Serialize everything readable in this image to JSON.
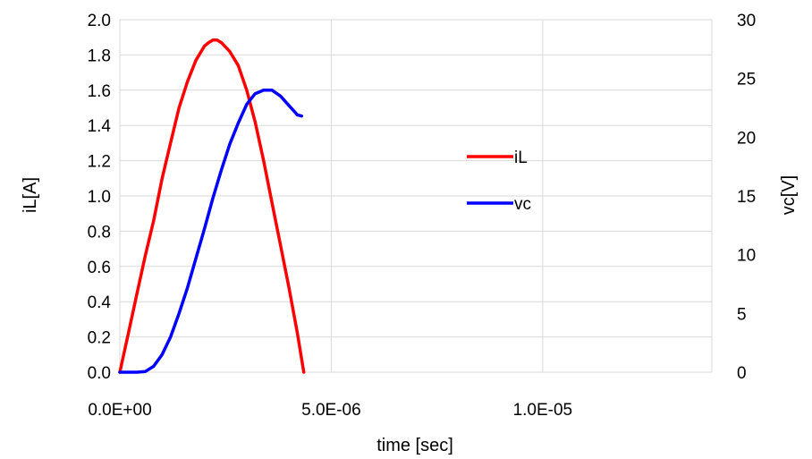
{
  "chart_data": {
    "type": "line",
    "title": "",
    "xlabel": "time [sec]",
    "ylabel": "iL[A]",
    "y2label": "vc[V]",
    "xlim": [
      0,
      1.4e-05
    ],
    "ylim": [
      0,
      2.0
    ],
    "y2lim": [
      0,
      30
    ],
    "grid": true,
    "legend_position": "center",
    "x_ticks": [
      {
        "value": 0,
        "label": "0.0E+00"
      },
      {
        "value": 5e-06,
        "label": "5.0E-06"
      },
      {
        "value": 1e-05,
        "label": "1.0E-05"
      }
    ],
    "y_ticks": [
      {
        "value": 0.0,
        "label": "0.0"
      },
      {
        "value": 0.2,
        "label": "0.2"
      },
      {
        "value": 0.4,
        "label": "0.4"
      },
      {
        "value": 0.6,
        "label": "0.6"
      },
      {
        "value": 0.8,
        "label": "0.8"
      },
      {
        "value": 1.0,
        "label": "1.0"
      },
      {
        "value": 1.2,
        "label": "1.2"
      },
      {
        "value": 1.4,
        "label": "1.4"
      },
      {
        "value": 1.6,
        "label": "1.6"
      },
      {
        "value": 1.8,
        "label": "1.8"
      },
      {
        "value": 2.0,
        "label": "2.0"
      }
    ],
    "y2_ticks": [
      {
        "value": 0,
        "label": "0"
      },
      {
        "value": 5,
        "label": "5"
      },
      {
        "value": 10,
        "label": "10"
      },
      {
        "value": 15,
        "label": "15"
      },
      {
        "value": 20,
        "label": "20"
      },
      {
        "value": 25,
        "label": "25"
      },
      {
        "value": 30,
        "label": "30"
      }
    ],
    "series": [
      {
        "name": "iL",
        "axis": "left",
        "color": "#ff0000",
        "x": [
          0,
          2e-07,
          4e-07,
          6e-07,
          8e-07,
          1e-06,
          1.2e-06,
          1.4e-06,
          1.6e-06,
          1.8e-06,
          2e-06,
          2.1e-06,
          2.2e-06,
          2.3e-06,
          2.4e-06,
          2.6e-06,
          2.8e-06,
          3e-06,
          3.2e-06,
          3.4e-06,
          3.6e-06,
          3.8e-06,
          4e-06,
          4.2e-06,
          4.35e-06
        ],
        "y": [
          0.0,
          0.22,
          0.44,
          0.66,
          0.86,
          1.1,
          1.3,
          1.5,
          1.65,
          1.77,
          1.85,
          1.87,
          1.885,
          1.885,
          1.87,
          1.82,
          1.74,
          1.6,
          1.42,
          1.2,
          0.96,
          0.72,
          0.48,
          0.22,
          0.0
        ]
      },
      {
        "name": "vc",
        "axis": "right",
        "color": "#0000ff",
        "x": [
          0,
          2e-07,
          4e-07,
          6e-07,
          8e-07,
          1e-06,
          1.2e-06,
          1.4e-06,
          1.6e-06,
          1.8e-06,
          2e-06,
          2.2e-06,
          2.4e-06,
          2.6e-06,
          2.8e-06,
          3e-06,
          3.2e-06,
          3.4e-06,
          3.6e-06,
          3.8e-06,
          4e-06,
          4.2e-06,
          4.3e-06
        ],
        "y": [
          0.0,
          0.0,
          0.0,
          0.05,
          0.5,
          1.5,
          3.0,
          5.0,
          7.2,
          9.7,
          12.2,
          14.8,
          17.2,
          19.4,
          21.2,
          22.8,
          23.7,
          24.0,
          24.0,
          23.5,
          22.7,
          21.9,
          21.8
        ]
      }
    ],
    "legend": [
      {
        "label": "iL",
        "color": "#ff0000"
      },
      {
        "label": "vc",
        "color": "#0000ff"
      }
    ]
  }
}
